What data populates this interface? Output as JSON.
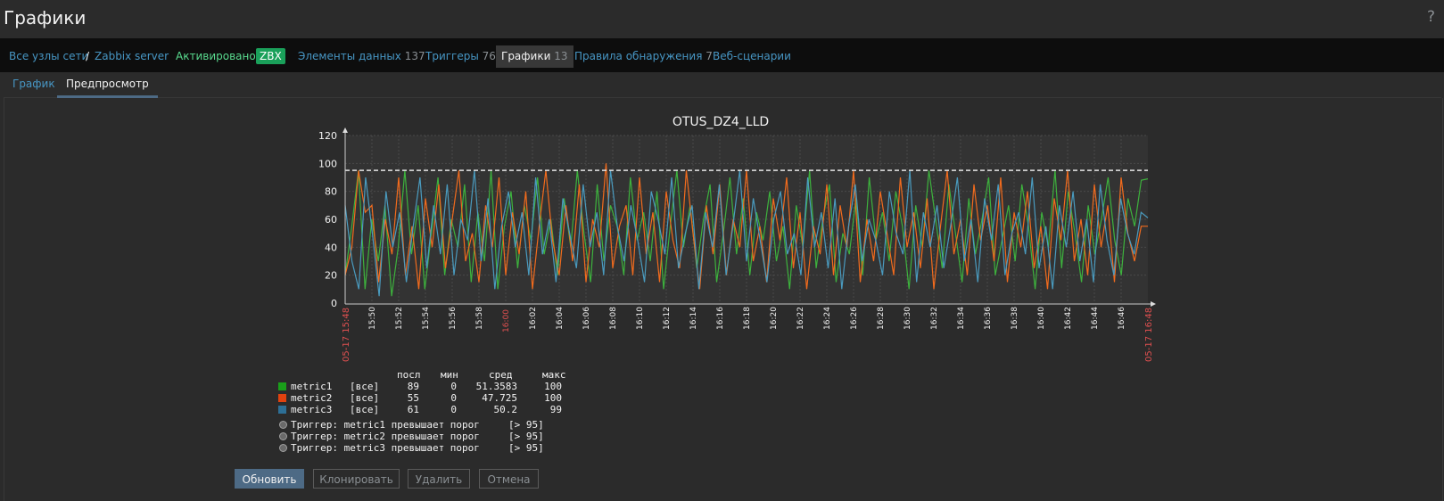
{
  "page": {
    "title": "Графики",
    "help": "?"
  },
  "nav": {
    "all_hosts": "Все узлы сети",
    "separator": "/",
    "host": "Zabbix server",
    "status": "Активировано",
    "badge": "ZBX",
    "items": {
      "label": "Элементы данных",
      "count": "137"
    },
    "triggers": {
      "label": "Триггеры",
      "count": "76"
    },
    "graphs": {
      "label": "Графики",
      "count": "13"
    },
    "discovery": {
      "label": "Правила обнаружения",
      "count": "7"
    },
    "web": {
      "label": "Веб-сценарии"
    }
  },
  "tabs": {
    "graph": "График",
    "preview": "Предпросмотр"
  },
  "chart_data": {
    "type": "line",
    "title": "OTUS_DZ4_LLD",
    "ylim": [
      0,
      120
    ],
    "y_ticks": [
      "0",
      "20",
      "40",
      "60",
      "80",
      "100",
      "120"
    ],
    "x_start": "05-17 15:48",
    "x_end": "05-17 16:48",
    "x_ticks": [
      "15:50",
      "15:52",
      "15:54",
      "15:56",
      "15:58",
      "16:00",
      "16:02",
      "16:04",
      "16:06",
      "16:08",
      "16:10",
      "16:12",
      "16:14",
      "16:16",
      "16:18",
      "16:20",
      "16:22",
      "16:24",
      "16:26",
      "16:28",
      "16:30",
      "16:32",
      "16:34",
      "16:36",
      "16:38",
      "16:40",
      "16:42",
      "16:44",
      "16:46"
    ],
    "threshold": 95,
    "grid": true,
    "series": [
      {
        "name": "metric1",
        "color": "#3db23d",
        "values": [
          20,
          55,
          95,
          10,
          60,
          30,
          70,
          5,
          40,
          95,
          35,
          70,
          10,
          50,
          90,
          20,
          60,
          40,
          85,
          15,
          65,
          30,
          95,
          10,
          55,
          80,
          25,
          70,
          45,
          90,
          35,
          60,
          20,
          75,
          40,
          95,
          50,
          15,
          85,
          30,
          70,
          55,
          20,
          90,
          45,
          65,
          30,
          80,
          10,
          55,
          95,
          40,
          70,
          25,
          60,
          85,
          15,
          50,
          90,
          35,
          75,
          20,
          65,
          45,
          80,
          30,
          55,
          10,
          70,
          40,
          95,
          25,
          60,
          85,
          15,
          50,
          35,
          75,
          20,
          90,
          45,
          65,
          30,
          80,
          55,
          10,
          70,
          40,
          95,
          60,
          25,
          85,
          50,
          15,
          75,
          35,
          60,
          90,
          20,
          45,
          70,
          30,
          85,
          55,
          10,
          65,
          40,
          95,
          25,
          80,
          50,
          15,
          70,
          35,
          60,
          90,
          45,
          20,
          75,
          55,
          88,
          89
        ]
      },
      {
        "name": "metric2",
        "color": "#f26b1d",
        "values": [
          20,
          40,
          95,
          65,
          70,
          15,
          60,
          35,
          90,
          20,
          55,
          10,
          75,
          40,
          85,
          25,
          60,
          95,
          30,
          50,
          15,
          70,
          40,
          90,
          20,
          65,
          35,
          80,
          10,
          55,
          95,
          45,
          20,
          70,
          30,
          85,
          15,
          60,
          40,
          100,
          25,
          55,
          70,
          20,
          90,
          35,
          65,
          15,
          80,
          45,
          25,
          95,
          50,
          10,
          70,
          35,
          85,
          20,
          60,
          40,
          95,
          30,
          55,
          15,
          75,
          45,
          90,
          25,
          65,
          10,
          55,
          35,
          85,
          20,
          70,
          40,
          95,
          15,
          60,
          30,
          80,
          50,
          20,
          90,
          40,
          65,
          25,
          75,
          10,
          55,
          95,
          35,
          60,
          20,
          85,
          45,
          70,
          30,
          90,
          15,
          65,
          40,
          80,
          25,
          55,
          10,
          75,
          45,
          95,
          30,
          60,
          20,
          85,
          40,
          70,
          15,
          90,
          50,
          30,
          55,
          55
        ]
      },
      {
        "name": "metric3",
        "color": "#4a9bbf",
        "values": [
          70,
          30,
          10,
          90,
          50,
          5,
          80,
          40,
          65,
          15,
          55,
          90,
          25,
          70,
          35,
          85,
          20,
          60,
          45,
          95,
          30,
          75,
          10,
          55,
          80,
          40,
          65,
          20,
          90,
          35,
          60,
          15,
          75,
          50,
          25,
          85,
          40,
          65,
          20,
          95,
          55,
          30,
          70,
          45,
          15,
          80,
          60,
          35,
          90,
          25,
          50,
          70,
          10,
          65,
          40,
          85,
          20,
          55,
          95,
          30,
          75,
          45,
          15,
          60,
          80,
          35,
          50,
          20,
          90,
          40,
          65,
          25,
          75,
          10,
          55,
          85,
          30,
          60,
          45,
          20,
          80,
          50,
          35,
          95,
          15,
          65,
          40,
          70,
          25,
          55,
          90,
          30,
          60,
          15,
          75,
          45,
          85,
          20,
          50,
          65,
          35,
          90,
          25,
          55,
          10,
          70,
          40,
          80,
          30,
          60,
          15,
          85,
          45,
          20,
          75,
          50,
          35,
          65,
          61
        ]
      }
    ]
  },
  "legend": {
    "headers": [
      "посл",
      "мин",
      "сред",
      "макс"
    ],
    "rows": [
      {
        "name": "metric1",
        "color": "#1a9f1a",
        "scope": "[все]",
        "last": "89",
        "min": "0",
        "avg": "51.3583",
        "max": "100"
      },
      {
        "name": "metric2",
        "color": "#e0420f",
        "scope": "[все]",
        "last": "55",
        "min": "0",
        "avg": "47.725",
        "max": "100"
      },
      {
        "name": "metric3",
        "color": "#2d6f96",
        "scope": "[все]",
        "last": "61",
        "min": "0",
        "avg": "50.2",
        "max": "99"
      }
    ],
    "triggers": [
      {
        "text": "Триггер: metric1 превышает порог",
        "cond": "[> 95]"
      },
      {
        "text": "Триггер: metric2 превышает порог",
        "cond": "[> 95]"
      },
      {
        "text": "Триггер: metric3 превышает порог",
        "cond": "[> 95]"
      }
    ]
  },
  "buttons": {
    "update": "Обновить",
    "clone": "Клонировать",
    "delete": "Удалить",
    "cancel": "Отмена"
  }
}
